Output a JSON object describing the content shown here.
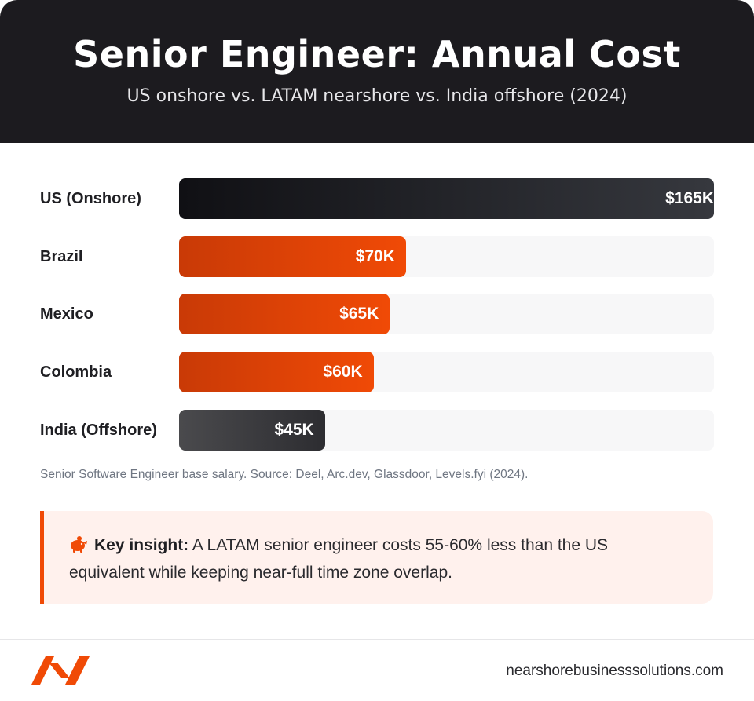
{
  "header": {
    "title": "Senior Engineer: Annual Cost",
    "subtitle": "US onshore vs. LATAM nearshore vs. India offshore (2024)"
  },
  "chart_data": {
    "type": "bar",
    "orientation": "horizontal",
    "title": "Senior Engineer: Annual Cost",
    "subtitle": "US onshore vs. LATAM nearshore vs. India offshore (2024)",
    "categories": [
      "US (Onshore)",
      "Brazil",
      "Mexico",
      "Colombia",
      "India (Offshore)"
    ],
    "values": [
      165,
      70,
      65,
      60,
      45
    ],
    "value_labels": [
      "$165K",
      "$70K",
      "$65K",
      "$60K",
      "$45K"
    ],
    "unit": "USD thousands",
    "xlim": [
      0,
      165
    ],
    "bar_colors": [
      "#1c1c21",
      "#e04406",
      "#e04406",
      "#e04406",
      "#3a3a3e"
    ],
    "grid": false,
    "legend": "none"
  },
  "source_note": "Senior Software Engineer base salary. Source: Deel, Arc.dev, Glassdoor, Levels.fyi (2024).",
  "insight": {
    "icon": "piggy-bank-icon",
    "label": "Key insight:",
    "text": " A LATAM senior engineer costs 55-60% less than the US equivalent while keeping near-full time zone overlap."
  },
  "footer": {
    "domain": "nearshorebusinesssolutions.com",
    "logo": "brand-logo"
  },
  "colors": {
    "accent": "#f04a06",
    "header_bg": "#1c1b1f",
    "insight_bg": "#fff1ed"
  }
}
